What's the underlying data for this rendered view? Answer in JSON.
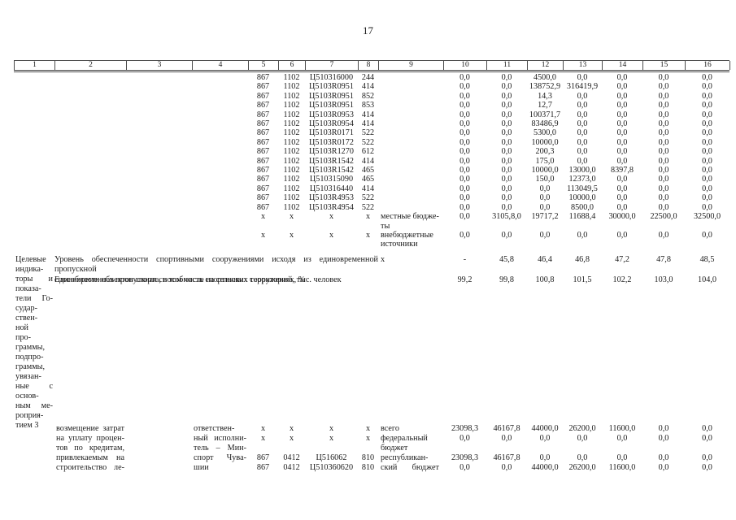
{
  "page_number": "17",
  "table": {
    "columns": [
      "1",
      "2",
      "3",
      "4",
      "5",
      "6",
      "7",
      "8",
      "9",
      "10",
      "11",
      "12",
      "13",
      "14",
      "15",
      "16"
    ],
    "section_a_rows": [
      [
        "",
        "",
        "",
        "",
        "867",
        "1102",
        "Ц510316000",
        "244",
        "",
        "0,0",
        "0,0",
        "4500,0",
        "0,0",
        "0,0",
        "0,0",
        "0,0"
      ],
      [
        "",
        "",
        "",
        "",
        "867",
        "1102",
        "Ц5103R0951",
        "414",
        "",
        "0,0",
        "0,0",
        "138752,9",
        "316419,9",
        "0,0",
        "0,0",
        "0,0"
      ],
      [
        "",
        "",
        "",
        "",
        "867",
        "1102",
        "Ц5103R0951",
        "852",
        "",
        "0,0",
        "0,0",
        "14,3",
        "0,0",
        "0,0",
        "0,0",
        "0,0"
      ],
      [
        "",
        "",
        "",
        "",
        "867",
        "1102",
        "Ц5103R0951",
        "853",
        "",
        "0,0",
        "0,0",
        "12,7",
        "0,0",
        "0,0",
        "0,0",
        "0,0"
      ],
      [
        "",
        "",
        "",
        "",
        "867",
        "1102",
        "Ц5103R0953",
        "414",
        "",
        "0,0",
        "0,0",
        "100371,7",
        "0,0",
        "0,0",
        "0,0",
        "0,0"
      ],
      [
        "",
        "",
        "",
        "",
        "867",
        "1102",
        "Ц5103R0954",
        "414",
        "",
        "0,0",
        "0,0",
        "83486,9",
        "0,0",
        "0,0",
        "0,0",
        "0,0"
      ],
      [
        "",
        "",
        "",
        "",
        "867",
        "1102",
        "Ц5103R0171",
        "522",
        "",
        "0,0",
        "0,0",
        "5300,0",
        "0,0",
        "0,0",
        "0,0",
        "0,0"
      ],
      [
        "",
        "",
        "",
        "",
        "867",
        "1102",
        "Ц5103R0172",
        "522",
        "",
        "0,0",
        "0,0",
        "10000,0",
        "0,0",
        "0,0",
        "0,0",
        "0,0"
      ],
      [
        "",
        "",
        "",
        "",
        "867",
        "1102",
        "Ц5103R1270",
        "612",
        "",
        "0,0",
        "0,0",
        "200,3",
        "0,0",
        "0,0",
        "0,0",
        "0,0"
      ],
      [
        "",
        "",
        "",
        "",
        "867",
        "1102",
        "Ц5103R1542",
        "414",
        "",
        "0,0",
        "0,0",
        "175,0",
        "0,0",
        "0,0",
        "0,0",
        "0,0"
      ],
      [
        "",
        "",
        "",
        "",
        "867",
        "1102",
        "Ц5103R1542",
        "465",
        "",
        "0,0",
        "0,0",
        "10000,0",
        "13000,0",
        "8397,8",
        "0,0",
        "0,0"
      ],
      [
        "",
        "",
        "",
        "",
        "867",
        "1102",
        "Ц510315090",
        "465",
        "",
        "0,0",
        "0,0",
        "150,0",
        "12373,0",
        "0,0",
        "0,0",
        "0,0"
      ],
      [
        "",
        "",
        "",
        "",
        "867",
        "1102",
        "Ц510316440",
        "414",
        "",
        "0,0",
        "0,0",
        "0,0",
        "113049,5",
        "0,0",
        "0,0",
        "0,0"
      ],
      [
        "",
        "",
        "",
        "",
        "867",
        "1102",
        "Ц5103R4953",
        "522",
        "",
        "0,0",
        "0,0",
        "0,0",
        "10000,0",
        "0,0",
        "0,0",
        "0,0"
      ],
      [
        "",
        "",
        "",
        "",
        "867",
        "1102",
        "Ц5103R4954",
        "522",
        "",
        "0,0",
        "0,0",
        "0,0",
        "8500,0",
        "0,0",
        "0,0",
        "0,0"
      ],
      [
        "",
        "",
        "",
        "",
        "х",
        "х",
        "х",
        "х",
        "местные бюдже-\nты",
        "0,0",
        "3105,8,0",
        "19717,2",
        "11688,4",
        "30000,0",
        "22500,0",
        "32500,0"
      ],
      [
        "",
        "",
        "",
        "",
        "х",
        "х",
        "х",
        "х",
        "внебюджетные\nисточники",
        "0,0",
        "0,0",
        "0,0",
        "0,0",
        "0,0",
        "0,0",
        "0,0"
      ]
    ],
    "indicators": {
      "row_label_lines": [
        "Целевые",
        "индика-",
        "торы и",
        "показа-",
        "тели Го-",
        "судар-",
        "ствен-",
        "ной",
        "про-",
        "граммы,",
        "подпро-",
        "граммы,",
        "увязан-",
        "ные с",
        "основ-",
        "ным ме-",
        "роприя-",
        "тием 3"
      ],
      "rows": [
        {
          "text_lines": [
            "Уровень обеспеченности спортивными сооружениями исходя из единовременной пропускной",
            "способности объектов спорта, в том числе на сельских территориях, %"
          ],
          "values": [
            "х",
            "-",
            "45,8",
            "46,4",
            "46,8",
            "47,2",
            "47,8",
            "48,5"
          ]
        },
        {
          "text_lines": [
            "Единовременная пропускная способность спортивных сооружений, тыс. человек"
          ],
          "values": [
            "",
            "99,2",
            "99,8",
            "100,8",
            "101,5",
            "102,2",
            "103,0",
            "104,0"
          ]
        }
      ]
    },
    "section_c_rows": [
      [
        "",
        "возмещение затрат",
        "",
        "ответствен-",
        "х",
        "х",
        "х",
        "х",
        "всего",
        "23098,3",
        "46167,8",
        "44000,0",
        "26200,0",
        "11600,0",
        "0,0",
        "0,0"
      ],
      [
        "",
        "на уплату процен-",
        "",
        "ный исполни-",
        "х",
        "х",
        "х",
        "х",
        "федеральный",
        "0,0",
        "0,0",
        "0,0",
        "0,0",
        "0,0",
        "0,0",
        "0,0"
      ],
      [
        "",
        "тов по кредитам,",
        "",
        "тель – Мин-",
        "",
        "",
        "",
        "",
        "бюджет",
        "",
        "",
        "",
        "",
        "",
        "",
        ""
      ],
      [
        "",
        "привлекаемым на",
        "",
        "спорт Чува-",
        "867",
        "0412",
        "Ц516062",
        "810",
        "республикан-",
        "23098,3",
        "46167,8",
        "0,0",
        "0,0",
        "0,0",
        "0,0",
        "0,0"
      ],
      [
        "",
        "строительство ле-",
        "",
        "шии",
        "867",
        "0412",
        "Ц510360620",
        "810",
        "ский бюджет",
        "0,0",
        "0,0",
        "44000,0",
        "26200,0",
        "11600,0",
        "0,0",
        "0,0"
      ]
    ]
  }
}
